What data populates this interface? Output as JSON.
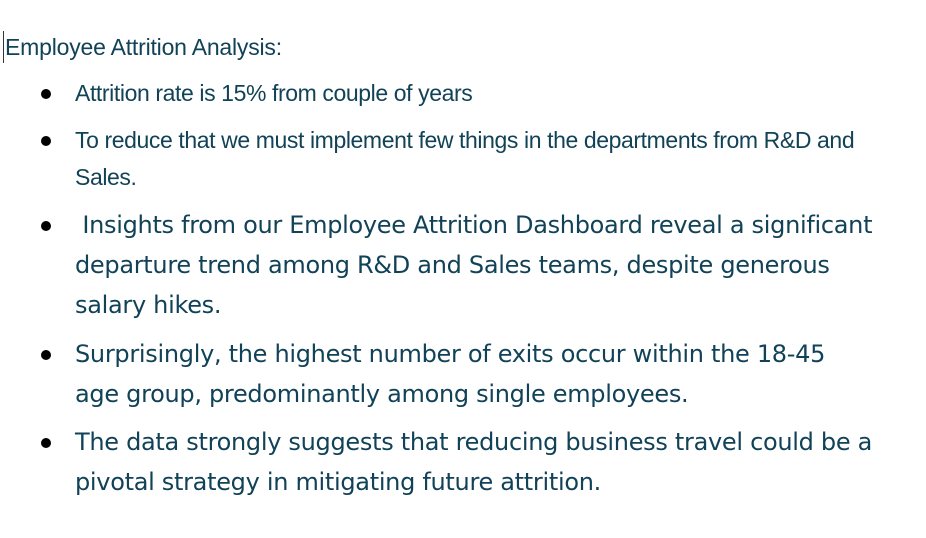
{
  "document": {
    "heading": "Employee Attrition Analysis:",
    "bullets": [
      {
        "text": "Attrition rate is 15% from couple of years"
      },
      {
        "text": "To reduce that we must implement few things in the departments from R&D and Sales."
      },
      {
        "text": " Insights from our Employee Attrition Dashboard reveal a significant departure trend among R&D and Sales teams, despite generous salary hikes."
      },
      {
        "text": "Surprisingly, the highest number of exits occur within the 18-45 age group, predominantly among single employees."
      },
      {
        "text": "The data strongly suggests that reducing business travel could be a pivotal strategy in mitigating future attrition."
      }
    ]
  },
  "colors": {
    "text": "#114257",
    "bullet": "#000000",
    "background": "#ffffff"
  }
}
